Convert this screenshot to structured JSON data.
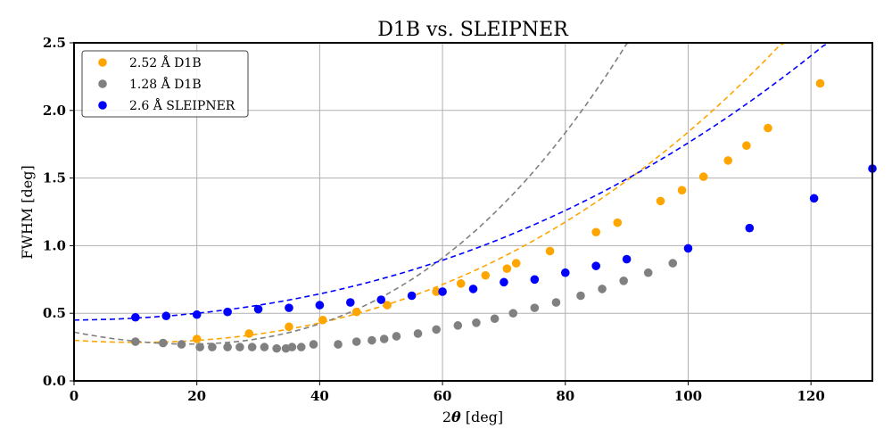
{
  "chart_data": {
    "type": "scatter",
    "title": "D1B vs. SLEIPNER",
    "xlabel_prefix": "2",
    "xlabel_symbol": "θ",
    "xlabel_unit": "[deg]",
    "ylabel": "FWHM [deg]",
    "xlim": [
      0,
      130
    ],
    "ylim": [
      0,
      2.5
    ],
    "x_ticks": [
      0,
      20,
      40,
      60,
      80,
      100,
      120
    ],
    "x_tick_labels": [
      "0",
      "20",
      "40",
      "60",
      "80",
      "100",
      "120"
    ],
    "y_ticks": [
      0,
      0.5,
      1.0,
      1.5,
      2.0,
      2.5
    ],
    "y_tick_labels": [
      "0.0",
      "0.5",
      "1.0",
      "1.5",
      "2.0",
      "2.5"
    ],
    "grid": true,
    "legend_position": "top-left",
    "series": [
      {
        "name": "2.52 Å D1B",
        "color": "#ffa500",
        "points": [
          [
            20,
            0.31
          ],
          [
            28.5,
            0.35
          ],
          [
            35,
            0.4
          ],
          [
            40.5,
            0.45
          ],
          [
            46,
            0.51
          ],
          [
            51,
            0.56
          ],
          [
            59,
            0.66
          ],
          [
            63,
            0.72
          ],
          [
            67,
            0.78
          ],
          [
            70.5,
            0.83
          ],
          [
            72,
            0.87
          ],
          [
            77.5,
            0.96
          ],
          [
            85,
            1.1
          ],
          [
            88.5,
            1.17
          ],
          [
            95.5,
            1.33
          ],
          [
            99,
            1.41
          ],
          [
            102.5,
            1.51
          ],
          [
            106.5,
            1.63
          ],
          [
            109.5,
            1.74
          ],
          [
            113,
            1.87
          ],
          [
            121.5,
            2.2
          ]
        ],
        "fit": [
          0.3,
          -0.0029,
          0.000133,
          5e-07
        ]
      },
      {
        "name": "1.28 Å D1B",
        "color": "#808080",
        "points": [
          [
            10,
            0.29
          ],
          [
            14.5,
            0.28
          ],
          [
            17.5,
            0.27
          ],
          [
            20.5,
            0.25
          ],
          [
            22.5,
            0.25
          ],
          [
            25,
            0.25
          ],
          [
            27,
            0.25
          ],
          [
            29,
            0.25
          ],
          [
            31,
            0.25
          ],
          [
            33,
            0.24
          ],
          [
            34.5,
            0.24
          ],
          [
            35.5,
            0.25
          ],
          [
            37,
            0.25
          ],
          [
            39,
            0.27
          ],
          [
            43,
            0.27
          ],
          [
            46,
            0.29
          ],
          [
            48.5,
            0.3
          ],
          [
            50.5,
            0.31
          ],
          [
            52.5,
            0.33
          ],
          [
            56,
            0.35
          ],
          [
            59,
            0.38
          ],
          [
            62.5,
            0.41
          ],
          [
            65.5,
            0.43
          ],
          [
            68.5,
            0.46
          ],
          [
            71.5,
            0.5
          ],
          [
            75,
            0.54
          ],
          [
            78.5,
            0.58
          ],
          [
            82.5,
            0.63
          ],
          [
            86,
            0.68
          ],
          [
            89.5,
            0.74
          ],
          [
            93.5,
            0.8
          ],
          [
            97.5,
            0.87
          ]
        ],
        "fit": [
          0.36,
          -0.0086,
          0.00017,
          2.1e-06
        ]
      },
      {
        "name": "2.6 Å SLEIPNER",
        "color": "#0000ff",
        "points": [
          [
            10,
            0.47
          ],
          [
            15,
            0.48
          ],
          [
            20,
            0.49
          ],
          [
            25,
            0.51
          ],
          [
            30,
            0.53
          ],
          [
            35,
            0.54
          ],
          [
            40,
            0.56
          ],
          [
            45,
            0.58
          ],
          [
            50,
            0.6
          ],
          [
            55,
            0.63
          ],
          [
            60,
            0.66
          ],
          [
            65,
            0.68
          ],
          [
            70,
            0.73
          ],
          [
            75,
            0.75
          ],
          [
            80,
            0.8
          ],
          [
            85,
            0.85
          ],
          [
            90,
            0.9
          ],
          [
            100,
            0.98
          ],
          [
            110,
            1.13
          ],
          [
            120.5,
            1.35
          ],
          [
            130,
            1.57
          ]
        ],
        "fit": [
          0.45,
          0.0004,
          0.0001,
          2.7e-07
        ]
      }
    ]
  }
}
